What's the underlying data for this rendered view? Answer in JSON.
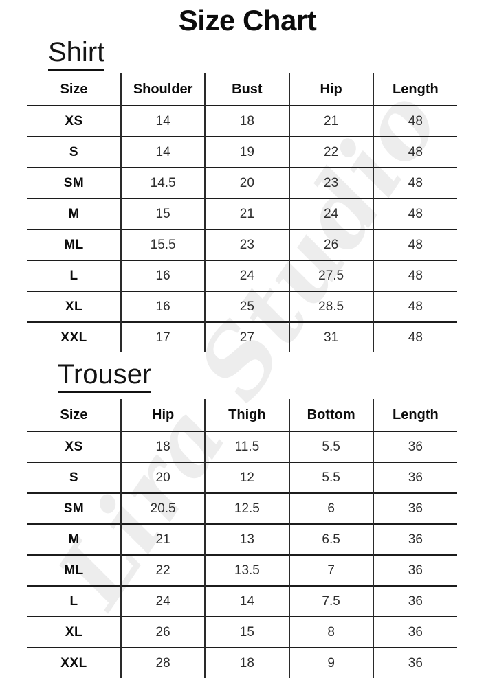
{
  "page": {
    "title": "Size Chart",
    "background_color": "#ffffff",
    "text_color": "#111111",
    "line_color": "#222222"
  },
  "watermark": {
    "text": "Lira Studio",
    "color": "rgba(17,17,17,0.075)"
  },
  "sections": [
    {
      "id": "shirt",
      "heading": "Shirt",
      "columns": [
        "Size",
        "Shoulder",
        "Bust",
        "Hip",
        "Length"
      ],
      "rows": [
        [
          "XS",
          "14",
          "18",
          "21",
          "48"
        ],
        [
          "S",
          "14",
          "19",
          "22",
          "48"
        ],
        [
          "SM",
          "14.5",
          "20",
          "23",
          "48"
        ],
        [
          "M",
          "15",
          "21",
          "24",
          "48"
        ],
        [
          "ML",
          "15.5",
          "23",
          "26",
          "48"
        ],
        [
          "L",
          "16",
          "24",
          "27.5",
          "48"
        ],
        [
          "XL",
          "16",
          "25",
          "28.5",
          "48"
        ],
        [
          "XXL",
          "17",
          "27",
          "31",
          "48"
        ]
      ]
    },
    {
      "id": "trouser",
      "heading": "Trouser",
      "columns": [
        "Size",
        "Hip",
        "Thigh",
        "Bottom",
        "Length"
      ],
      "rows": [
        [
          "XS",
          "18",
          "11.5",
          "5.5",
          "36"
        ],
        [
          "S",
          "20",
          "12",
          "5.5",
          "36"
        ],
        [
          "SM",
          "20.5",
          "12.5",
          "6",
          "36"
        ],
        [
          "M",
          "21",
          "13",
          "6.5",
          "36"
        ],
        [
          "ML",
          "22",
          "13.5",
          "7",
          "36"
        ],
        [
          "L",
          "24",
          "14",
          "7.5",
          "36"
        ],
        [
          "XL",
          "26",
          "15",
          "8",
          "36"
        ],
        [
          "XXL",
          "28",
          "18",
          "9",
          "36"
        ]
      ]
    }
  ]
}
